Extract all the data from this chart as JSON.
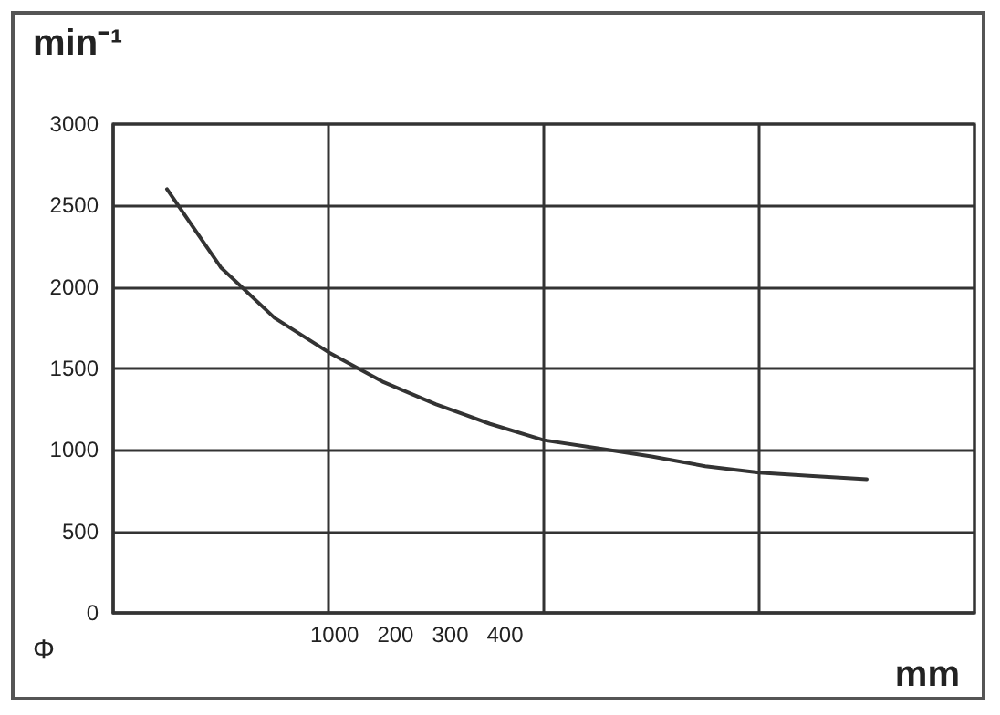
{
  "chart_data": {
    "type": "line",
    "ylabel": "min⁻¹",
    "xlabel": "mm",
    "annotations": [
      "Φ",
      "1000   200   300   400"
    ],
    "categories": [
      null,
      null,
      null,
      null,
      null,
      null,
      null,
      null,
      null,
      null,
      null,
      null,
      null,
      null,
      null,
      null,
      null
    ],
    "series": [
      {
        "color": "#333333",
        "values": [
          null,
          2600,
          2120,
          1810,
          1600,
          1420,
          1280,
          1160,
          1060,
          1010,
          960,
          900,
          860,
          840,
          820,
          null,
          null
        ]
      }
    ],
    "ylim": [
      0,
      3000
    ],
    "yticks": [
      0,
      500,
      1000,
      1500,
      2000,
      2500,
      3000
    ],
    "tick_labels": "y",
    "grid": true,
    "marker": "none",
    "line_style": "solid"
  }
}
